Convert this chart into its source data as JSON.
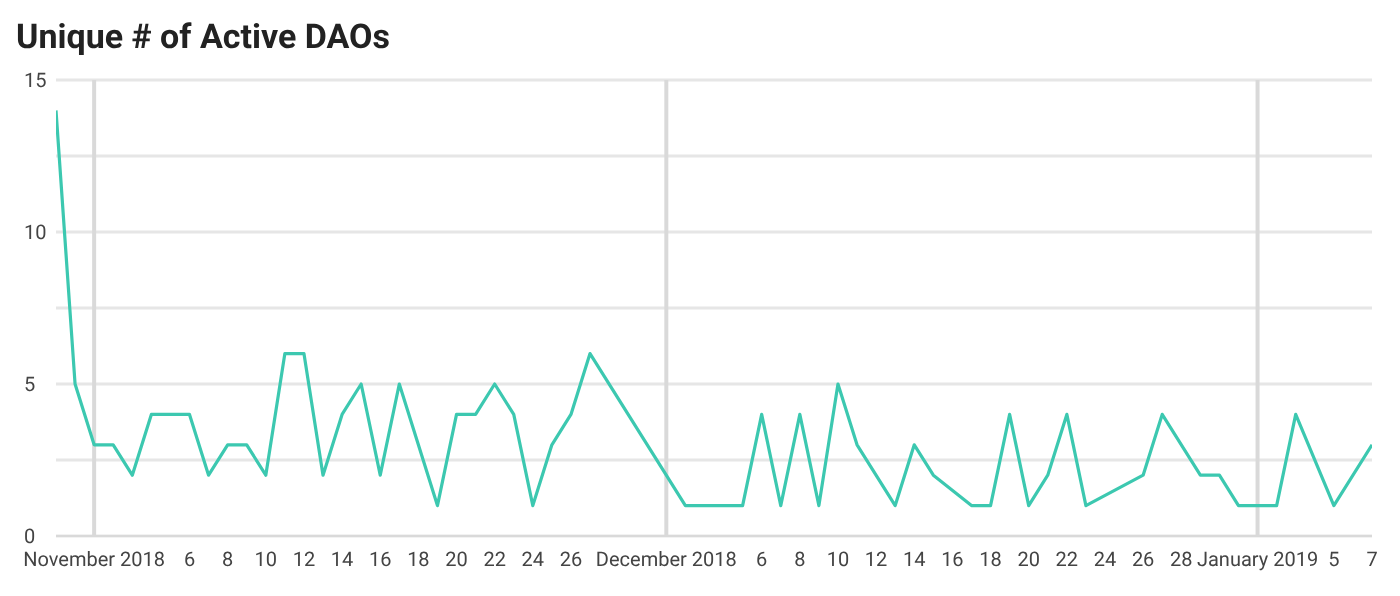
{
  "chart_data": {
    "type": "line",
    "title": "Unique # of Active DAOs",
    "x": [
      "2018-10-30",
      "2018-10-31",
      "2018-11-01",
      "2018-11-02",
      "2018-11-03",
      "2018-11-04",
      "2018-11-05",
      "2018-11-06",
      "2018-11-07",
      "2018-11-08",
      "2018-11-09",
      "2018-11-10",
      "2018-11-11",
      "2018-11-12",
      "2018-11-13",
      "2018-11-14",
      "2018-11-15",
      "2018-11-16",
      "2018-11-17",
      "2018-11-19",
      "2018-11-20",
      "2018-11-21",
      "2018-11-22",
      "2018-11-23",
      "2018-11-24",
      "2018-11-25",
      "2018-11-26",
      "2018-11-27",
      "2018-12-02",
      "2018-12-05",
      "2018-12-06",
      "2018-12-07",
      "2018-12-08",
      "2018-12-09",
      "2018-12-10",
      "2018-12-11",
      "2018-12-13",
      "2018-12-14",
      "2018-12-15",
      "2018-12-17",
      "2018-12-18",
      "2018-12-19",
      "2018-12-20",
      "2018-12-21",
      "2018-12-22",
      "2018-12-23",
      "2018-12-26",
      "2018-12-27",
      "2018-12-29",
      "2018-12-30",
      "2018-12-31",
      "2019-01-02",
      "2019-01-03",
      "2019-01-05",
      "2019-01-07"
    ],
    "series": [
      {
        "color": "#3cc8b0",
        "values": [
          14,
          5,
          3,
          3,
          2,
          4,
          4,
          4,
          2,
          3,
          3,
          2,
          6,
          6,
          2,
          4,
          5,
          2,
          5,
          1,
          4,
          4,
          5,
          4,
          1,
          3,
          4,
          6,
          1,
          1,
          4,
          1,
          4,
          1,
          5,
          3,
          1,
          3,
          2,
          1,
          1,
          4,
          1,
          2,
          4,
          1,
          2,
          4,
          2,
          2,
          1,
          1,
          4,
          1,
          3
        ]
      }
    ],
    "xlim": [
      "2018-10-30",
      "2019-01-07"
    ],
    "xticks": [
      {
        "value": "2018-11-01",
        "label": "November 2018"
      },
      {
        "value": "2018-11-06",
        "label": "6"
      },
      {
        "value": "2018-11-08",
        "label": "8"
      },
      {
        "value": "2018-11-10",
        "label": "10"
      },
      {
        "value": "2018-11-12",
        "label": "12"
      },
      {
        "value": "2018-11-14",
        "label": "14"
      },
      {
        "value": "2018-11-16",
        "label": "16"
      },
      {
        "value": "2018-11-18",
        "label": "18"
      },
      {
        "value": "2018-11-20",
        "label": "20"
      },
      {
        "value": "2018-11-22",
        "label": "22"
      },
      {
        "value": "2018-11-24",
        "label": "24"
      },
      {
        "value": "2018-11-26",
        "label": "26"
      },
      {
        "value": "2018-12-01",
        "label": "December 2018"
      },
      {
        "value": "2018-12-06",
        "label": "6"
      },
      {
        "value": "2018-12-08",
        "label": "8"
      },
      {
        "value": "2018-12-10",
        "label": "10"
      },
      {
        "value": "2018-12-12",
        "label": "12"
      },
      {
        "value": "2018-12-14",
        "label": "14"
      },
      {
        "value": "2018-12-16",
        "label": "16"
      },
      {
        "value": "2018-12-18",
        "label": "18"
      },
      {
        "value": "2018-12-20",
        "label": "20"
      },
      {
        "value": "2018-12-22",
        "label": "22"
      },
      {
        "value": "2018-12-24",
        "label": "24"
      },
      {
        "value": "2018-12-26",
        "label": "26"
      },
      {
        "value": "2018-12-28",
        "label": "28"
      },
      {
        "value": "2019-01-01",
        "label": "January 2019"
      },
      {
        "value": "2019-01-05",
        "label": "5"
      },
      {
        "value": "2019-01-07",
        "label": "7"
      }
    ],
    "ylim": [
      0,
      15
    ],
    "yticks": [
      0,
      {
        "value": 2.5,
        "label": null
      },
      5,
      {
        "value": 7.5,
        "label": null
      },
      10,
      {
        "value": 12.5,
        "label": null
      },
      15
    ],
    "grid": "y",
    "ref_lines": [
      {
        "axis": "x",
        "value": "2018-11-01",
        "color": "#d9d9d9"
      },
      {
        "axis": "x",
        "value": "2018-12-01",
        "color": "#d9d9d9"
      },
      {
        "axis": "x",
        "value": "2019-01-01",
        "color": "#d9d9d9"
      }
    ],
    "marker": "none",
    "line_style": "solid",
    "legend": false
  }
}
